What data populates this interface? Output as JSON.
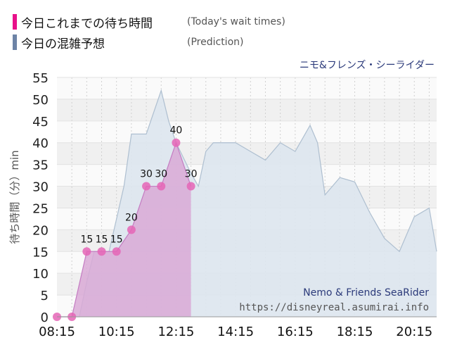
{
  "legend": [
    {
      "label": "今日これまでの待ち時間",
      "sublabel": "(Today's wait times)",
      "color": "#e8118a"
    },
    {
      "label": "今日の混雑予想",
      "sublabel": "(Prediction)",
      "color": "#6d83a6"
    }
  ],
  "attraction_title": "ニモ&フレンズ・シーライダー",
  "watermark": {
    "title": "Nemo & Friends SeaRider",
    "url": "https://disneyreal.asumirai.info"
  },
  "colors": {
    "today_fill": "#d9a9d6",
    "today_line": "#c47cc2",
    "today_point": "#e565b6",
    "prediction_fill": "#dde6ee",
    "prediction_line": "#aebfd0",
    "watermark_title": "#2b3a7a",
    "watermark_url": "#555555"
  },
  "chart_data": {
    "type": "area",
    "ylabel": "待ち時間（分）min",
    "ylim": [
      0,
      55
    ],
    "yticks": [
      "0",
      "5",
      "10",
      "15",
      "20",
      "25",
      "30",
      "35",
      "40",
      "45",
      "50",
      "55"
    ],
    "xlim": [
      "08:15",
      "21:00"
    ],
    "xticks": [
      "08:15",
      "10:15",
      "12:15",
      "14:15",
      "16:15",
      "18:15",
      "20:15"
    ],
    "grid": true,
    "series": [
      {
        "name": "今日これまでの待ち時間",
        "points": [
          {
            "x": "08:15",
            "y": 0
          },
          {
            "x": "08:45",
            "y": 0
          },
          {
            "x": "09:15",
            "y": 15
          },
          {
            "x": "09:45",
            "y": 15
          },
          {
            "x": "10:15",
            "y": 15
          },
          {
            "x": "10:45",
            "y": 20
          },
          {
            "x": "11:15",
            "y": 30
          },
          {
            "x": "11:45",
            "y": 30
          },
          {
            "x": "12:15",
            "y": 40
          },
          {
            "x": "12:45",
            "y": 30
          }
        ],
        "labels": [
          "",
          "",
          "15",
          "15",
          "15",
          "20",
          "30",
          "30",
          "40",
          "30"
        ]
      },
      {
        "name": "今日の混雑予想",
        "points": [
          {
            "x": "08:15",
            "y": 0
          },
          {
            "x": "08:45",
            "y": 0
          },
          {
            "x": "09:00",
            "y": 0
          },
          {
            "x": "09:15",
            "y": 8
          },
          {
            "x": "09:30",
            "y": 15
          },
          {
            "x": "10:00",
            "y": 15
          },
          {
            "x": "10:30",
            "y": 30
          },
          {
            "x": "10:45",
            "y": 42
          },
          {
            "x": "11:15",
            "y": 42
          },
          {
            "x": "11:45",
            "y": 52
          },
          {
            "x": "12:00",
            "y": 45
          },
          {
            "x": "12:15",
            "y": 40
          },
          {
            "x": "12:45",
            "y": 33
          },
          {
            "x": "13:00",
            "y": 30
          },
          {
            "x": "13:15",
            "y": 38
          },
          {
            "x": "13:30",
            "y": 40
          },
          {
            "x": "14:15",
            "y": 40
          },
          {
            "x": "14:45",
            "y": 38
          },
          {
            "x": "15:15",
            "y": 36
          },
          {
            "x": "15:45",
            "y": 40
          },
          {
            "x": "16:15",
            "y": 38
          },
          {
            "x": "16:30",
            "y": 41
          },
          {
            "x": "16:45",
            "y": 44
          },
          {
            "x": "17:00",
            "y": 40
          },
          {
            "x": "17:15",
            "y": 28
          },
          {
            "x": "17:45",
            "y": 32
          },
          {
            "x": "18:15",
            "y": 31
          },
          {
            "x": "18:45",
            "y": 24
          },
          {
            "x": "19:15",
            "y": 18
          },
          {
            "x": "19:45",
            "y": 15
          },
          {
            "x": "20:15",
            "y": 23
          },
          {
            "x": "20:45",
            "y": 25
          },
          {
            "x": "21:00",
            "y": 15
          }
        ]
      }
    ]
  }
}
